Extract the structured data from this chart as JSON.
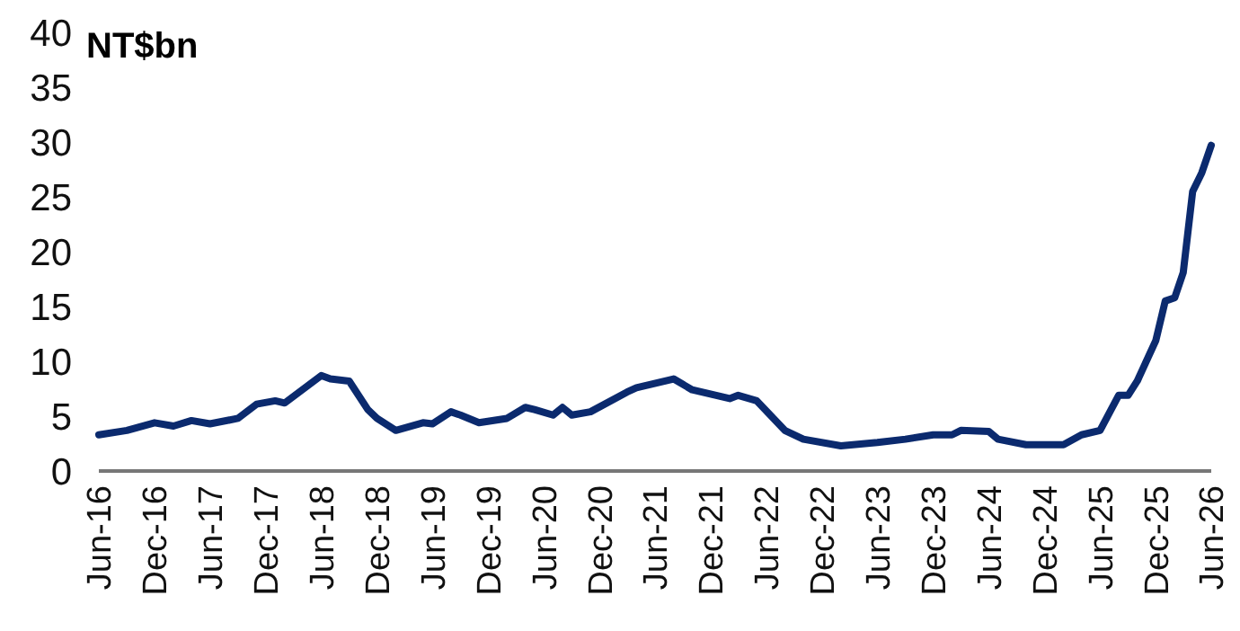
{
  "chart_data": {
    "type": "line",
    "ylabel": "NT$bn",
    "x": [
      "2016-06",
      "2016-09",
      "2016-12",
      "2017-02",
      "2017-04",
      "2017-06",
      "2017-09",
      "2017-11",
      "2018-01",
      "2018-02",
      "2018-06",
      "2018-07",
      "2018-09",
      "2018-11",
      "2018-12",
      "2019-02",
      "2019-05",
      "2019-06",
      "2019-08",
      "2019-09",
      "2019-11",
      "2020-02",
      "2020-04",
      "2020-05",
      "2020-07",
      "2020-08",
      "2020-09",
      "2020-11",
      "2021-03",
      "2021-04",
      "2021-08",
      "2021-10",
      "2022-02",
      "2022-03",
      "2022-05",
      "2022-08",
      "2022-10",
      "2023-02",
      "2023-06",
      "2023-09",
      "2023-12",
      "2024-02",
      "2024-03",
      "2024-06",
      "2024-07",
      "2024-10",
      "2025-02",
      "2025-04",
      "2025-06",
      "2025-08",
      "2025-09",
      "2025-10",
      "2025-12",
      "2026-01",
      "2026-02",
      "2026-03",
      "2026-04",
      "2026-05",
      "2026-06"
    ],
    "series": [
      {
        "color": "#0b2a6e",
        "values": [
          3.3,
          3.7,
          4.4,
          4.1,
          4.6,
          4.3,
          4.8,
          6.1,
          6.4,
          6.2,
          8.7,
          8.4,
          8.2,
          5.6,
          4.8,
          3.7,
          4.4,
          4.3,
          5.4,
          5.1,
          4.4,
          4.8,
          5.8,
          5.6,
          5.1,
          5.8,
          5.1,
          5.4,
          7.2,
          7.6,
          8.4,
          7.4,
          6.6,
          6.9,
          6.4,
          3.7,
          2.9,
          2.3,
          2.6,
          2.9,
          3.3,
          3.3,
          3.7,
          3.6,
          2.9,
          2.4,
          2.4,
          3.3,
          3.7,
          6.9,
          6.9,
          8.2,
          11.9,
          15.5,
          15.8,
          18.1,
          25.5,
          27.2,
          29.7
        ]
      }
    ],
    "xlim": [
      "2016-06",
      "2026-06"
    ],
    "xticks": [
      {
        "value": "2016-06",
        "label": "Jun-16"
      },
      {
        "value": "2016-12",
        "label": "Dec-16"
      },
      {
        "value": "2017-06",
        "label": "Jun-17"
      },
      {
        "value": "2017-12",
        "label": "Dec-17"
      },
      {
        "value": "2018-06",
        "label": "Jun-18"
      },
      {
        "value": "2018-12",
        "label": "Dec-18"
      },
      {
        "value": "2019-06",
        "label": "Jun-19"
      },
      {
        "value": "2019-12",
        "label": "Dec-19"
      },
      {
        "value": "2020-06",
        "label": "Jun-20"
      },
      {
        "value": "2020-12",
        "label": "Dec-20"
      },
      {
        "value": "2021-06",
        "label": "Jun-21"
      },
      {
        "value": "2021-12",
        "label": "Dec-21"
      },
      {
        "value": "2022-06",
        "label": "Jun-22"
      },
      {
        "value": "2022-12",
        "label": "Dec-22"
      },
      {
        "value": "2023-06",
        "label": "Jun-23"
      },
      {
        "value": "2023-12",
        "label": "Dec-23"
      },
      {
        "value": "2024-06",
        "label": "Jun-24"
      },
      {
        "value": "2024-12",
        "label": "Dec-24"
      },
      {
        "value": "2025-06",
        "label": "Jun-25"
      },
      {
        "value": "2025-12",
        "label": "Dec-25"
      },
      {
        "value": "2026-06",
        "label": "Jun-26"
      }
    ],
    "ylim": [
      0,
      40
    ],
    "yticks": [
      0,
      5,
      10,
      15,
      20,
      25,
      30,
      35,
      40
    ],
    "marker": "none",
    "line_style": "solid"
  }
}
